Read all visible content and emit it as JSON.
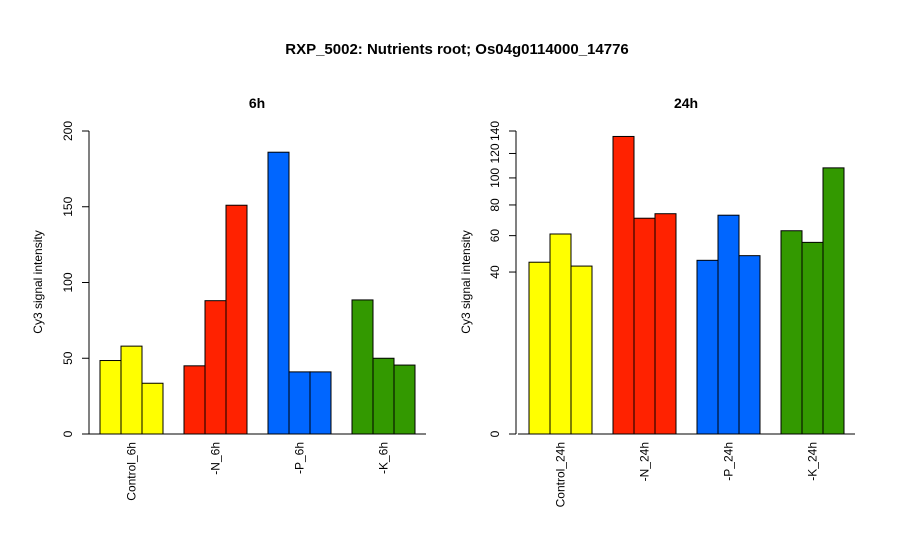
{
  "title": "RXP_5002: Nutrients root; Os04g0114000_14776",
  "colors": {
    "control": "#ffff00",
    "n": "#ff2200",
    "p": "#0066ff",
    "k": "#339900"
  },
  "chart_data": [
    {
      "type": "bar",
      "title": "6h",
      "ylabel": "Cy3 signal intensity",
      "ylim": [
        0,
        200
      ],
      "yticks": [
        0,
        50,
        100,
        150,
        200
      ],
      "categories": [
        "Control_6h",
        "-N_6h",
        "-P_6h",
        "-K_6h"
      ],
      "groups": [
        {
          "category": "Control_6h",
          "color_key": "control",
          "values": [
            48.5,
            58,
            33.5
          ]
        },
        {
          "category": "-N_6h",
          "color_key": "n",
          "values": [
            45,
            88,
            151
          ]
        },
        {
          "category": "-P_6h",
          "color_key": "p",
          "values": [
            186,
            41,
            41
          ]
        },
        {
          "category": "-K_6h",
          "color_key": "k",
          "values": [
            88.5,
            50,
            45.5
          ]
        }
      ]
    },
    {
      "type": "bar",
      "title": "24h",
      "ylabel": "Cy3 signal intensity",
      "ylim": [
        0,
        140
      ],
      "scale": "sqrt",
      "yticks": [
        0,
        40,
        60,
        80,
        100,
        120,
        140
      ],
      "categories": [
        "Control_24h",
        "-N_24h",
        "-P_24h",
        "-K_24h"
      ],
      "groups": [
        {
          "category": "Control_24h",
          "color_key": "control",
          "values": [
            45,
            61,
            43
          ]
        },
        {
          "category": "-N_24h",
          "color_key": "n",
          "values": [
            135,
            71,
            74
          ]
        },
        {
          "category": "-P_24h",
          "color_key": "p",
          "values": [
            46,
            73,
            48.5
          ]
        },
        {
          "category": "-K_24h",
          "color_key": "k",
          "values": [
            63,
            56,
            108
          ]
        }
      ]
    }
  ]
}
